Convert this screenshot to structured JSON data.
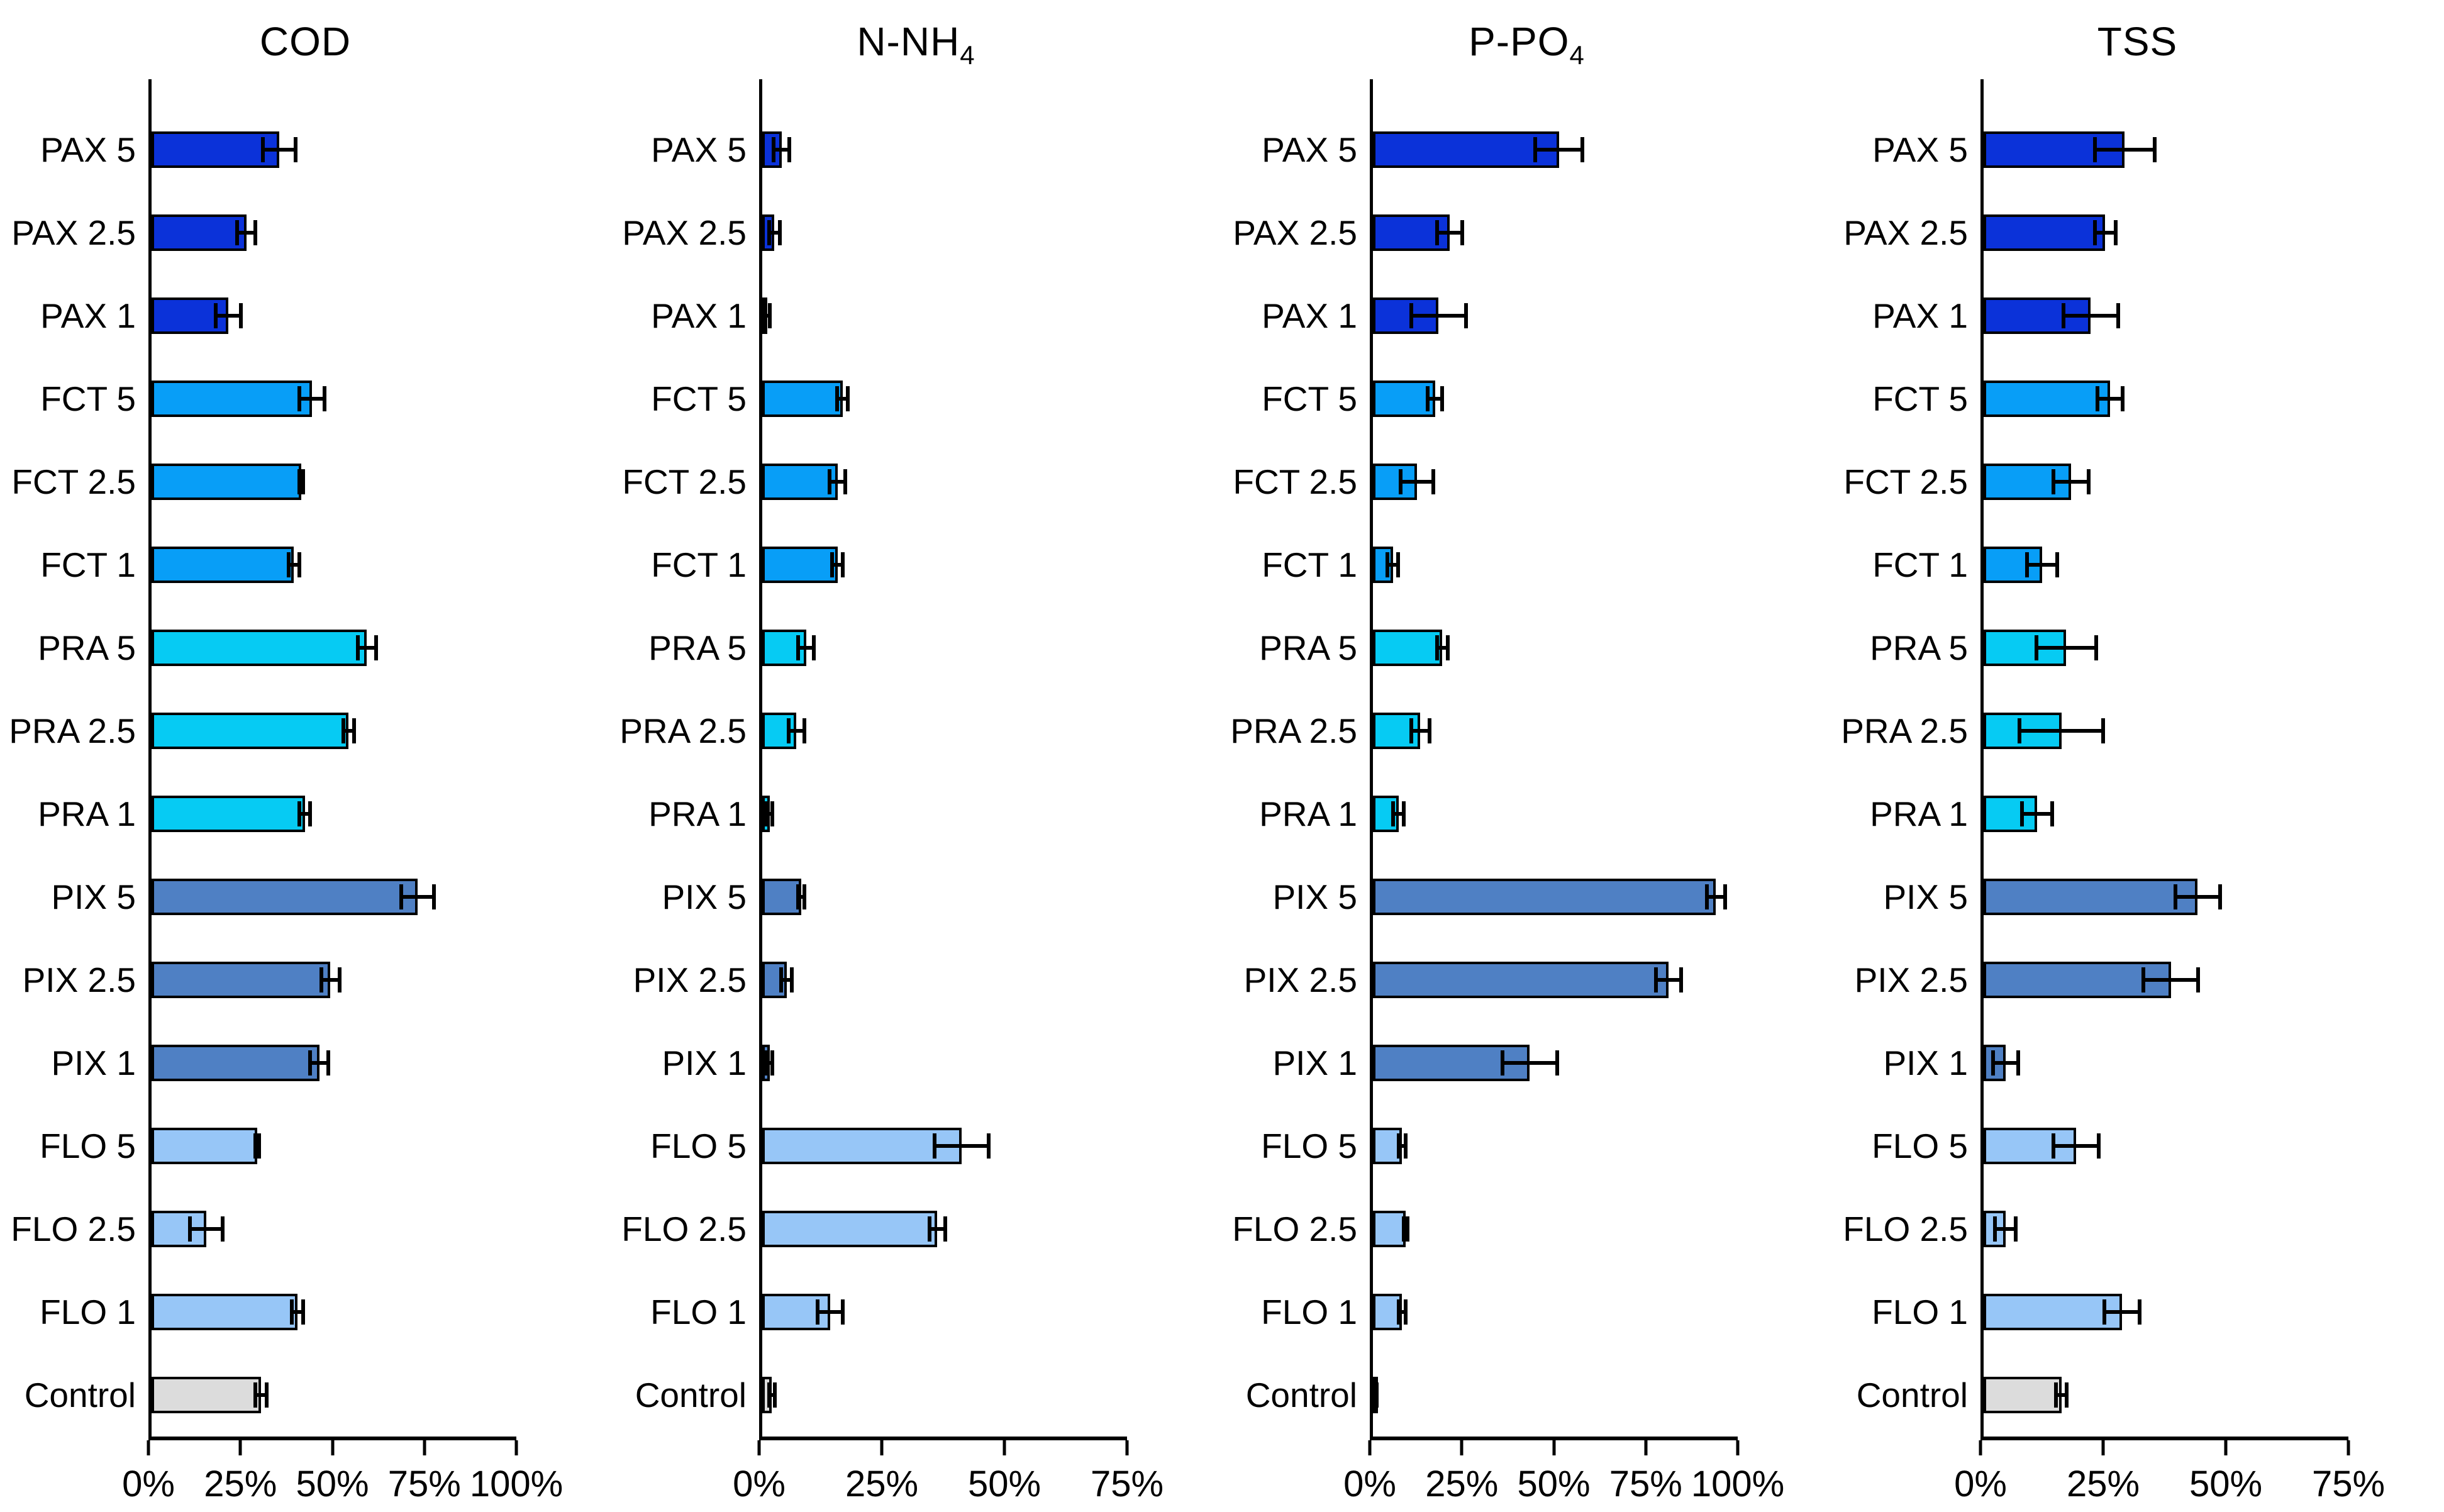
{
  "figure": {
    "background": "#ffffff",
    "axis_color": "#000000",
    "error_bar_color": "#000000"
  },
  "categories": [
    "PAX 5",
    "PAX 2.5",
    "PAX 1",
    "FCT 5",
    "FCT 2.5",
    "FCT 1",
    "PRA 5",
    "PRA 2.5",
    "PRA 1",
    "PIX 5",
    "PIX 2.5",
    "PIX 1",
    "FLO 5",
    "FLO 2.5",
    "FLO 1",
    "Control"
  ],
  "series_colors": {
    "PAX": "#0B32D9",
    "FCT": "#089EF7",
    "PRA": "#06CBF3",
    "PIX": "#4F80C4",
    "FLO": "#97C6F7",
    "Control": "#DCDCDC"
  },
  "chart_data": [
    {
      "type": "bar",
      "orientation": "horizontal",
      "id": "cod",
      "title": "COD",
      "title_main": "COD",
      "title_sub": "",
      "xlim": [
        0,
        100
      ],
      "xtick_values": [
        0,
        25,
        50,
        75,
        100
      ],
      "xtick_labels": [
        "0%",
        "25%",
        "50%",
        "75%",
        "100%"
      ],
      "categories": [
        "PAX 5",
        "PAX 2.5",
        "PAX 1",
        "FCT 5",
        "FCT 2.5",
        "FCT 1",
        "PRA 5",
        "PRA 2.5",
        "PRA 1",
        "PIX 5",
        "PIX 2.5",
        "PIX 1",
        "FLO 5",
        "FLO 2.5",
        "FLO 1",
        "Control"
      ],
      "values": [
        35,
        26,
        21,
        44,
        41,
        39,
        59,
        54,
        42,
        73,
        49,
        46,
        29,
        15,
        40,
        30
      ],
      "errors": [
        5,
        3,
        4,
        4,
        1,
        2,
        3,
        2,
        2,
        5,
        3,
        3,
        1,
        5,
        2,
        2
      ]
    },
    {
      "type": "bar",
      "orientation": "horizontal",
      "id": "n-nh4",
      "title": "N-NH4",
      "title_main": "N-NH",
      "title_sub": "4",
      "xlim": [
        0,
        75
      ],
      "xtick_values": [
        0,
        25,
        50,
        75
      ],
      "xtick_labels": [
        "0%",
        "25%",
        "50%",
        "75%"
      ],
      "categories": [
        "PAX 5",
        "PAX 2.5",
        "PAX 1",
        "FCT 5",
        "FCT 2.5",
        "FCT 1",
        "PRA 5",
        "PRA 2.5",
        "PRA 1",
        "PIX 5",
        "PIX 2.5",
        "PIX 1",
        "FLO 5",
        "FLO 2.5",
        "FLO 1",
        "Control"
      ],
      "values": [
        4,
        2.5,
        1,
        16.5,
        15.5,
        15.5,
        9,
        7,
        1.5,
        8,
        5,
        1.5,
        41,
        36,
        14,
        2
      ],
      "errors": [
        2,
        1.5,
        1,
        1.5,
        2,
        1.5,
        2,
        2,
        1,
        1,
        1.5,
        1,
        6,
        2,
        3,
        1
      ]
    },
    {
      "type": "bar",
      "orientation": "horizontal",
      "id": "p-po4",
      "title": "P-PO4",
      "title_main": "P-PO",
      "title_sub": "4",
      "xlim": [
        0,
        100
      ],
      "xtick_values": [
        0,
        25,
        50,
        75,
        100
      ],
      "xtick_labels": [
        "0%",
        "25%",
        "50%",
        "75%",
        "100%"
      ],
      "categories": [
        "PAX 5",
        "PAX 2.5",
        "PAX 1",
        "FCT 5",
        "FCT 2.5",
        "FCT 1",
        "PRA 5",
        "PRA 2.5",
        "PRA 1",
        "PIX 5",
        "PIX 2.5",
        "PIX 1",
        "FLO 5",
        "FLO 2.5",
        "FLO 1",
        "Control"
      ],
      "values": [
        51,
        21,
        18,
        17,
        12,
        5.5,
        19,
        13,
        7,
        94,
        81,
        43,
        8,
        9,
        8,
        1
      ],
      "errors": [
        7,
        4,
        8,
        2.5,
        5,
        2,
        2,
        3,
        2,
        3,
        4,
        8,
        1.5,
        1,
        1.5,
        0.5
      ]
    },
    {
      "type": "bar",
      "orientation": "horizontal",
      "id": "tss",
      "title": "TSS",
      "title_main": "TSS",
      "title_sub": "",
      "xlim": [
        0,
        75
      ],
      "xtick_values": [
        0,
        25,
        50,
        75
      ],
      "xtick_labels": [
        "0%",
        "25%",
        "50%",
        "75%"
      ],
      "categories": [
        "PAX 5",
        "PAX 2.5",
        "PAX 1",
        "FCT 5",
        "FCT 2.5",
        "FCT 1",
        "PRA 5",
        "PRA 2.5",
        "PRA 1",
        "PIX 5",
        "PIX 2.5",
        "PIX 1",
        "FLO 5",
        "FLO 2.5",
        "FLO 1",
        "Control"
      ],
      "values": [
        29,
        25,
        22,
        26,
        18,
        12,
        17,
        16,
        11,
        44,
        38.5,
        4.5,
        19,
        4.5,
        28.5,
        16
      ],
      "errors": [
        6.5,
        2.5,
        6,
        3,
        4,
        3.5,
        6.5,
        9,
        3.5,
        5,
        6,
        3,
        5,
        2.5,
        4,
        1.5
      ]
    }
  ]
}
